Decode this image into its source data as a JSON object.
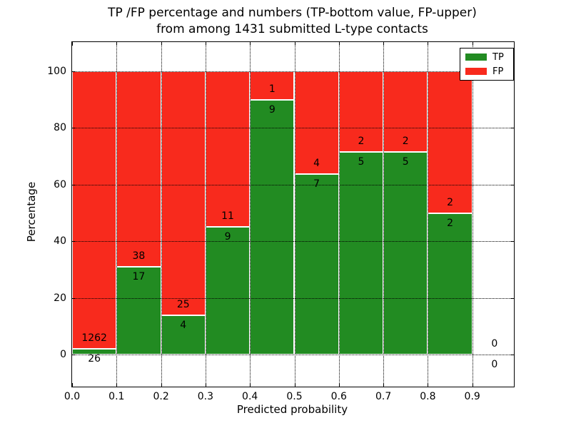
{
  "chart_data": {
    "type": "bar",
    "stacked": true,
    "title_line1": "TP /FP percentage and numbers (TP-bottom value, FP-upper)",
    "title_line2": "from among 1431 submitted L-type contacts",
    "xlabel": "Predicted probability",
    "ylabel": "Percentage",
    "grid": "dotted, drawn above bars",
    "legend_position": "upper right",
    "xlim": [
      0,
      0.99
    ],
    "ylim": [
      -11,
      110
    ],
    "bin_width": 0.1,
    "bin_starts": [
      0.0,
      0.1,
      0.2,
      0.3,
      0.4,
      0.5,
      0.6,
      0.7,
      0.8,
      0.9
    ],
    "x_tick_labels": [
      "0.0",
      "0.1",
      "0.2",
      "0.3",
      "0.4",
      "0.5",
      "0.6",
      "0.7",
      "0.8",
      "0.9"
    ],
    "x_tick_values": [
      0,
      0.1,
      0.2,
      0.3,
      0.4,
      0.5,
      0.6,
      0.7,
      0.8,
      0.9
    ],
    "y_tick_labels": [
      "0",
      "20",
      "40",
      "60",
      "80",
      "100"
    ],
    "y_tick_values": [
      0,
      20,
      40,
      60,
      80,
      100
    ],
    "series": [
      {
        "name": "TP",
        "color": "#228b22",
        "values": [
          26,
          17,
          4,
          9,
          9,
          7,
          5,
          5,
          2,
          0
        ]
      },
      {
        "name": "FP",
        "color": "#f82a1d",
        "values": [
          1262,
          38,
          25,
          11,
          1,
          4,
          2,
          2,
          2,
          0
        ]
      }
    ],
    "bars_note": "each non-empty bin stacked to 100%; green TP percentage at bottom, red FP above; numeric labels show raw counts",
    "legend": {
      "entries": [
        {
          "label": "TP",
          "color": "#228b22"
        },
        {
          "label": "FP",
          "color": "#f82a1d"
        }
      ]
    }
  }
}
